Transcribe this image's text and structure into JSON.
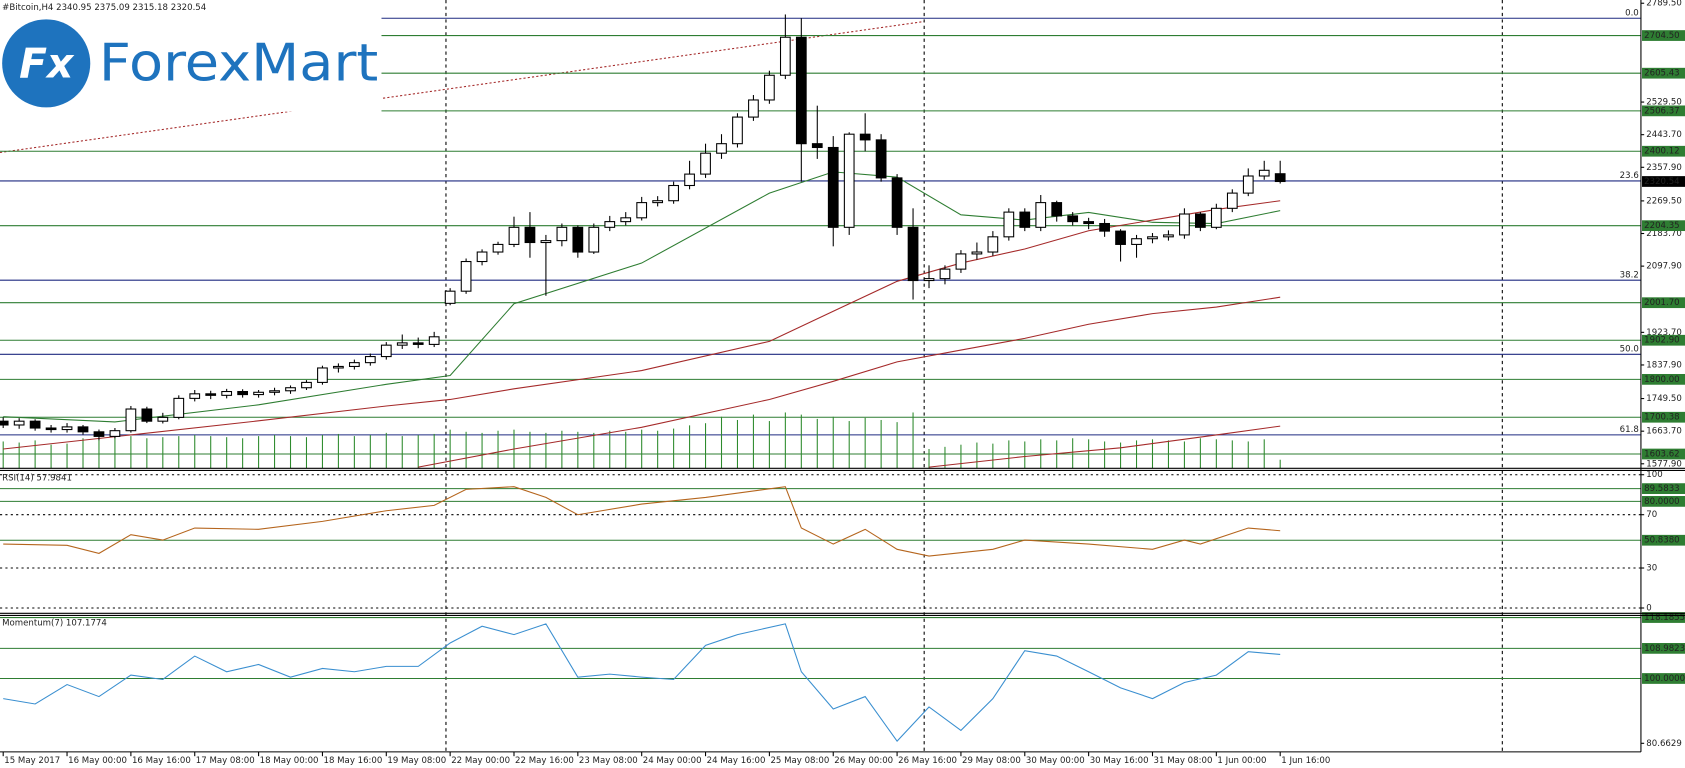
{
  "logo": {
    "icon": "Fx",
    "text": "ForexMart"
  },
  "chart_data": [
    {
      "type": "candlestick",
      "title": "#Bitcoin,H4  2340.95 2375.09 2315.18 2320.54",
      "categories": [
        "15 May 2017",
        null,
        null,
        null,
        "16 May 00:00",
        null,
        null,
        null,
        "16 May 16:00",
        null,
        null,
        null,
        "17 May 08:00",
        null,
        null,
        null,
        "18 May 00:00",
        null,
        null,
        null,
        "18 May 16:00",
        null,
        null,
        null,
        "19 May 08:00",
        null,
        null,
        null,
        "22 May 00:00",
        null,
        null,
        null,
        "22 May 16:00",
        null,
        null,
        null,
        "23 May 08:00",
        null,
        null,
        null,
        "24 May 00:00",
        null,
        null,
        null,
        "24 May 16:00",
        null,
        null,
        null,
        "25 May 08:00",
        null,
        null,
        null,
        "26 May 00:00",
        null,
        null,
        null,
        "26 May 16:00",
        null,
        null,
        null,
        "29 May 08:00",
        null,
        null,
        null,
        "30 May 00:00",
        null,
        null,
        null,
        "30 May 16:00",
        null,
        null,
        null,
        "31 May 08:00",
        null,
        null,
        null,
        "1 Jun 00:00",
        null,
        null,
        null,
        "1 Jun 16:00"
      ],
      "open": [
        1690,
        1680,
        1690,
        1672,
        1668,
        1675,
        1662,
        1650,
        1665,
        1722,
        1690,
        1700,
        1750,
        1762,
        1758,
        1768,
        1760,
        1766,
        1770,
        1778,
        1792,
        1830,
        1834,
        1844,
        1860,
        1890,
        1896,
        1892,
        2000,
        2032,
        2110,
        2135,
        2155,
        2200,
        2160,
        2165,
        2200,
        2135,
        2200,
        2215,
        2225,
        2265,
        2270,
        2310,
        2340,
        2395,
        2420,
        2490,
        2535,
        2600,
        2700,
        2420,
        2410,
        2200,
        2445,
        2430,
        2330,
        2200,
        2060,
        2065,
        2090,
        2130,
        2135,
        2175,
        2240,
        2200,
        2265,
        2230,
        2215,
        2210,
        2190,
        2155,
        2170,
        2175,
        2180,
        2235,
        2200,
        2250,
        2290,
        2335,
        2340.95
      ],
      "high": [
        1700,
        1698,
        1695,
        1680,
        1685,
        1680,
        1668,
        1672,
        1730,
        1728,
        1712,
        1758,
        1772,
        1770,
        1775,
        1774,
        1772,
        1778,
        1784,
        1798,
        1836,
        1842,
        1852,
        1868,
        1898,
        1918,
        1910,
        1925,
        2040,
        2118,
        2142,
        2162,
        2228,
        2240,
        2180,
        2210,
        2205,
        2210,
        2230,
        2240,
        2280,
        2282,
        2320,
        2375,
        2420,
        2445,
        2500,
        2548,
        2612,
        2760,
        2750,
        2520,
        2440,
        2450,
        2500,
        2445,
        2340,
        2250,
        2100,
        2100,
        2140,
        2160,
        2190,
        2250,
        2250,
        2285,
        2270,
        2240,
        2225,
        2222,
        2195,
        2180,
        2185,
        2192,
        2250,
        2240,
        2262,
        2300,
        2355,
        2375,
        2375.09
      ],
      "low": [
        1672,
        1670,
        1665,
        1660,
        1660,
        1655,
        1640,
        1645,
        1660,
        1685,
        1684,
        1695,
        1742,
        1748,
        1750,
        1752,
        1752,
        1758,
        1762,
        1772,
        1786,
        1818,
        1826,
        1836,
        1852,
        1880,
        1882,
        1885,
        1995,
        2025,
        2100,
        2128,
        2148,
        2120,
        2020,
        2150,
        2120,
        2130,
        2190,
        2205,
        2218,
        2255,
        2262,
        2300,
        2330,
        2380,
        2410,
        2480,
        2525,
        2590,
        2320,
        2380,
        2150,
        2180,
        2400,
        2320,
        2180,
        2010,
        2040,
        2050,
        2080,
        2115,
        2125,
        2165,
        2190,
        2190,
        2215,
        2205,
        2195,
        2175,
        2110,
        2120,
        2158,
        2165,
        2170,
        2190,
        2195,
        2240,
        2282,
        2325,
        2315.18
      ],
      "close": [
        1680,
        1690,
        1672,
        1668,
        1675,
        1662,
        1650,
        1665,
        1722,
        1690,
        1700,
        1750,
        1762,
        1758,
        1768,
        1760,
        1766,
        1770,
        1778,
        1792,
        1830,
        1834,
        1844,
        1860,
        1890,
        1896,
        1892,
        1912,
        2032,
        2110,
        2135,
        2155,
        2200,
        2160,
        2165,
        2200,
        2135,
        2200,
        2215,
        2225,
        2265,
        2270,
        2310,
        2340,
        2395,
        2420,
        2490,
        2535,
        2600,
        2700,
        2420,
        2410,
        2200,
        2445,
        2430,
        2330,
        2200,
        2060,
        2065,
        2090,
        2130,
        2135,
        2175,
        2240,
        2200,
        2265,
        2230,
        2215,
        2210,
        2190,
        2155,
        2170,
        2175,
        2180,
        2235,
        2200,
        2250,
        2290,
        2335,
        2350,
        2320.54
      ],
      "volume": [
        25,
        24,
        26,
        22,
        23,
        28,
        27,
        30,
        30,
        28,
        29,
        30,
        31,
        30,
        29,
        28,
        30,
        31,
        30,
        29,
        31,
        32,
        30,
        31,
        33,
        30,
        31,
        32,
        36,
        34,
        33,
        35,
        36,
        34,
        33,
        35,
        34,
        33,
        35,
        34,
        36,
        35,
        37,
        40,
        42,
        48,
        45,
        50,
        44,
        52,
        50,
        46,
        48,
        44,
        47,
        45,
        43,
        52,
        18,
        20,
        22,
        24,
        23,
        26,
        25,
        27,
        26,
        28,
        27,
        25,
        24,
        26,
        27,
        26,
        25,
        28,
        27,
        26,
        25,
        27,
        8
      ],
      "volume_color": "#2e8b2e",
      "up_color": "#ffffff",
      "down_color": "#000000",
      "overlays": [
        {
          "color": "#2e7d32",
          "x": [
            0,
            7,
            16,
            24,
            28,
            32,
            40,
            48,
            52,
            56,
            60,
            64,
            68,
            72,
            76,
            80
          ],
          "values": [
            1702,
            1688,
            1733,
            1787,
            1810,
            1999,
            2106,
            2290,
            2346,
            2332,
            2233,
            2219,
            2239,
            2213,
            2210,
            2244
          ]
        },
        {
          "color": "#a52a2a",
          "x": [
            0,
            8,
            16,
            24,
            28,
            32,
            40,
            48,
            52,
            56,
            60,
            64,
            68,
            72,
            76,
            80
          ],
          "values": [
            1617,
            1654,
            1691,
            1730,
            1747,
            1775,
            1823,
            1900,
            1979,
            2058,
            2106,
            2143,
            2191,
            2219,
            2247,
            2270
          ]
        },
        {
          "color": "#a52a2a",
          "x": [
            26,
            32,
            40,
            48,
            52,
            56,
            60,
            64,
            68,
            72,
            76,
            80
          ],
          "values": [
            1569,
            1617,
            1674,
            1747,
            1795,
            1846,
            1877,
            1908,
            1945,
            1973,
            1990,
            2016
          ]
        },
        {
          "color": "#a52a2a",
          "x": [
            58,
            64,
            70,
            76,
            80
          ],
          "values": [
            1569,
            1597,
            1620,
            1654,
            1677
          ]
        }
      ],
      "xlim": [
        -0.2,
        102.6
      ],
      "ylim": [
        1566,
        2798
      ],
      "yticks": [
        {
          "value": 2789.5,
          "label": "2789.50"
        },
        {
          "value": 2529.5,
          "label": "2529.50"
        },
        {
          "value": 2443.7,
          "label": "2443.70"
        },
        {
          "value": 2357.9,
          "label": "2357.90"
        },
        {
          "value": 2269.5,
          "label": "2269.50"
        },
        {
          "value": 2183.7,
          "label": "2183.70"
        },
        {
          "value": 2097.9,
          "label": "2097.90"
        },
        {
          "value": 1923.7,
          "label": "1923.70"
        },
        {
          "value": 1837.9,
          "label": "1837.90"
        },
        {
          "value": 1749.5,
          "label": "1749.50"
        },
        {
          "value": 1663.7,
          "label": "1663.70"
        },
        {
          "value": 1577.9,
          "label": "1577.90"
        }
      ],
      "grid": false,
      "level_color": "#2e7d32",
      "levels": [
        {
          "value": 2704.5,
          "label": "2704.50"
        },
        {
          "value": 2605.43,
          "label": "2605.43"
        },
        {
          "value": 2506.37,
          "label": "2506.37"
        },
        {
          "value": 2400.12,
          "label": "2400.12"
        },
        {
          "value": 2204.35,
          "label": "2204.35"
        },
        {
          "value": 2001.7,
          "label": "2001.70"
        },
        {
          "value": 1902.9,
          "label": "1902.90"
        },
        {
          "value": 1800,
          "label": "1800.00"
        },
        {
          "value": 1700.38,
          "label": "1700.38"
        },
        {
          "value": 1603.62,
          "label": "1603.62"
        }
      ],
      "fibo_color": "#1f2a80",
      "fibo": [
        {
          "value": 2750,
          "label": "0.0"
        },
        {
          "value": 2322,
          "label": "23.6"
        },
        {
          "value": 2061,
          "label": "38.2"
        },
        {
          "value": 1866,
          "label": "50.0"
        },
        {
          "value": 1654,
          "label": "61.8"
        }
      ],
      "current": {
        "value": 2320.54,
        "label": "2320.54"
      },
      "current_color": "#000000"
    },
    {
      "type": "line",
      "title": "RSI(14) 57.9841",
      "color": "#b5651d",
      "x": [
        0,
        4,
        6,
        8,
        10,
        12,
        16,
        20,
        24,
        27,
        29,
        32,
        34,
        36,
        40,
        44,
        49,
        50,
        52,
        54,
        56,
        58,
        62,
        64,
        68,
        72,
        74,
        75,
        78,
        80
      ],
      "values": [
        48,
        47,
        41,
        55,
        51,
        60,
        59,
        65,
        73,
        77,
        89,
        91,
        83,
        70,
        78,
        83,
        91,
        60,
        48,
        59,
        44,
        39,
        44,
        51,
        48,
        44,
        51,
        48,
        60,
        57.9841
      ],
      "xlim": [
        -0.2,
        102.6
      ],
      "ylim": [
        -4,
        103.2
      ],
      "yticks": [
        100,
        70,
        30,
        0
      ],
      "grid": true,
      "level_color": "#2e7d32",
      "levels": [
        {
          "value": 89.5833,
          "label": "89.5833"
        },
        {
          "value": 80,
          "label": "80.0000"
        },
        {
          "value": 50.838,
          "label": "50.8380"
        }
      ]
    },
    {
      "type": "line",
      "title": "Momentum(7) 107.1774",
      "color": "#3a8fd0",
      "x": [
        0,
        2,
        4,
        6,
        8,
        10,
        12,
        14,
        16,
        18,
        20,
        22,
        24,
        26,
        28,
        30,
        32,
        34,
        36,
        38,
        40,
        42,
        44,
        46,
        49,
        50,
        52,
        54,
        56,
        58,
        60,
        62,
        64,
        66,
        68,
        70,
        72,
        74,
        76,
        78,
        80
      ],
      "values": [
        94.0,
        92.4,
        98.2,
        94.6,
        101,
        99.7,
        106.7,
        102,
        104.2,
        100.4,
        103,
        102,
        103.6,
        103.6,
        110.6,
        115.6,
        113.1,
        116.3,
        100.4,
        101.3,
        100.4,
        99.7,
        109.9,
        113.1,
        116.3,
        102,
        90.9,
        94.6,
        81.3,
        91.5,
        84.5,
        94,
        108.3,
        106.7,
        102,
        97.2,
        94,
        98.8,
        101,
        108,
        107.1774
      ],
      "xlim": [
        -0.2,
        102.6
      ],
      "ylim": [
        78.1,
        118.8
      ],
      "yticks": [
        {
          "value": 80.6629,
          "label": "80.6629"
        }
      ],
      "grid": false,
      "level_color": "#2e7d32",
      "levels": [
        {
          "value": 118.1855,
          "label": "118.1855"
        },
        {
          "value": 108.9823,
          "label": "108.9823"
        },
        {
          "value": 100,
          "label": "100.0000"
        }
      ]
    }
  ]
}
